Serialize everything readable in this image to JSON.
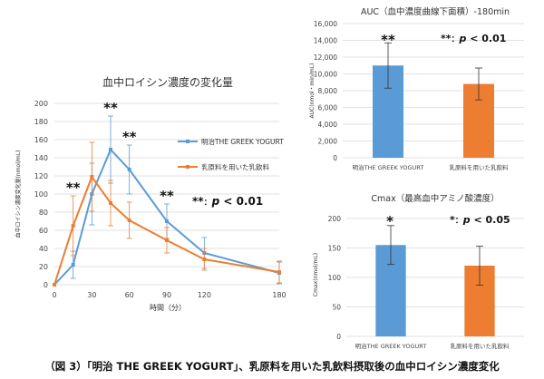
{
  "chart_data": [
    {
      "type": "line",
      "title": "血中ロイシン濃度の変化量",
      "xlabel": "時間（分）",
      "ylabel": "血中ロイシン濃度変化量(nmol/mL)",
      "xlim": [
        0,
        180
      ],
      "ylim": [
        0,
        200
      ],
      "x_ticks": [
        0,
        30,
        60,
        90,
        120,
        180
      ],
      "y_ticks": [
        0,
        20,
        40,
        60,
        80,
        100,
        120,
        140,
        160,
        180,
        200
      ],
      "x": [
        0,
        15,
        30,
        45,
        60,
        90,
        120,
        180
      ],
      "series": [
        {
          "name": "明治THE GREEK YOGURT",
          "color": "#5B9BD5",
          "values": [
            0,
            22,
            100,
            149,
            127,
            70,
            35,
            13
          ],
          "err": [
            0,
            15,
            34,
            37,
            27,
            19,
            17,
            12
          ]
        },
        {
          "name": "乳原料を用いた乳飲料",
          "color": "#ED7D31",
          "values": [
            0,
            65,
            119,
            90,
            71,
            49,
            28,
            14
          ],
          "err": [
            0,
            33,
            38,
            25,
            20,
            14,
            12,
            12
          ]
        }
      ],
      "significance": [
        {
          "x": 15,
          "label": "**"
        },
        {
          "x": 45,
          "label": "**"
        },
        {
          "x": 60,
          "label": "**"
        },
        {
          "x": 90,
          "label": "**"
        }
      ],
      "p_note": {
        "stars": "**",
        "sep": "：",
        "p": "p",
        "rest": " < 0.01"
      },
      "legend_position": "right"
    },
    {
      "type": "bar",
      "title": "AUC（血中濃度曲線下面積）-180min",
      "ylabel": "AUC(nmol・min/mL)",
      "ylim": [
        0,
        16000
      ],
      "y_ticks": [
        0,
        2000,
        4000,
        6000,
        8000,
        10000,
        12000,
        14000,
        16000
      ],
      "y_tick_labels": [
        "0",
        "2,000",
        "4,000",
        "6,000",
        "8,000",
        "10,000",
        "12,000",
        "14,000",
        "16,000"
      ],
      "categories": [
        "明治THE GREEK YOGURT",
        "乳原料を用いた乳飲料"
      ],
      "values": [
        11000,
        8800
      ],
      "err": [
        2700,
        1900
      ],
      "colors": [
        "#5B9BD5",
        "#ED7D31"
      ],
      "significance": "**",
      "p_note": {
        "stars": "**",
        "sep": "：",
        "p": "p",
        "rest": " < 0.01"
      }
    },
    {
      "type": "bar",
      "title": "Cmax（最高血中アミノ酸濃度）",
      "ylabel": "Cmax(nmol/mL)",
      "ylim": [
        0,
        200
      ],
      "y_ticks": [
        0,
        50,
        100,
        150,
        200
      ],
      "y_tick_labels": [
        "0",
        "50",
        "100",
        "150",
        "200"
      ],
      "categories": [
        "明治THE GREEK YOGURT",
        "乳原料を用いた乳飲料"
      ],
      "values": [
        155,
        120
      ],
      "err": [
        33,
        33
      ],
      "colors": [
        "#5B9BD5",
        "#ED7D31"
      ],
      "significance": "*",
      "p_note": {
        "stars": "*",
        "sep": "：",
        "p": "p",
        "rest": " < 0.05"
      }
    }
  ],
  "caption": "（図 3）「明治 THE GREEK YOGURT」、乳原料を用いた乳飲料摂取後の血中ロイシン濃度変化"
}
